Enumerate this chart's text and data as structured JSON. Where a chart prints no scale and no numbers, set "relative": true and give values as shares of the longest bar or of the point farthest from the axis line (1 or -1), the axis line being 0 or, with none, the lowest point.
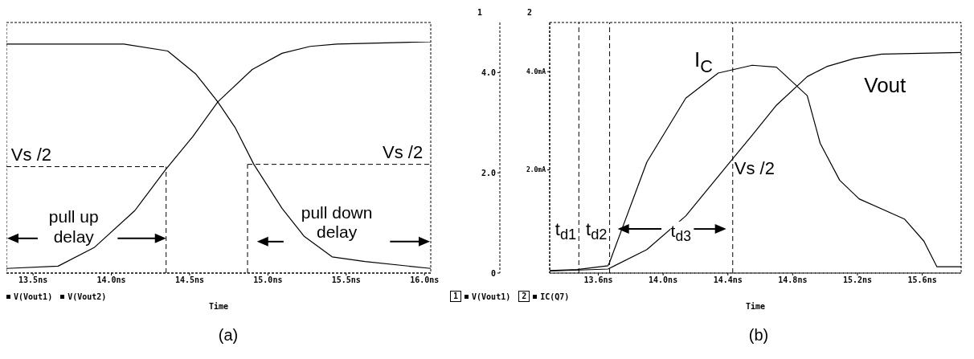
{
  "chart_data": [
    {
      "type": "line",
      "title": "(a)",
      "xlabel": "Time",
      "relative": true,
      "marker": "none",
      "legend": "bottom left",
      "xlim": [
        13.33,
        16.04
      ],
      "xticks": [
        {
          "value": 13.5,
          "label": "13.5ns"
        },
        {
          "value": 14.0,
          "label": "14.0ns"
        },
        {
          "value": 14.5,
          "label": "14.5ns"
        },
        {
          "value": 15.0,
          "label": "15.0ns"
        },
        {
          "value": 15.5,
          "label": "15.5ns"
        },
        {
          "value": 16.0,
          "label": "16.0ns"
        }
      ],
      "series": [
        {
          "name": "V(Vout1)",
          "color": "#000000",
          "x": [
            13.33,
            13.66,
            13.89,
            14.15,
            14.35,
            14.52,
            14.68,
            14.9,
            15.09,
            15.27,
            15.44,
            16.04
          ],
          "values": [
            0.02,
            0.03,
            0.11,
            0.27,
            0.45,
            0.59,
            0.74,
            0.88,
            0.95,
            0.98,
            0.99,
            1
          ]
        },
        {
          "name": "V(Vout2)",
          "color": "#000000",
          "x": [
            13.33,
            13.85,
            14.08,
            14.36,
            14.54,
            14.68,
            14.79,
            14.91,
            15.09,
            15.23,
            15.41,
            15.62,
            16.04
          ],
          "values": [
            0.99,
            0.99,
            0.99,
            0.96,
            0.86,
            0.74,
            0.63,
            0.47,
            0.28,
            0.16,
            0.07,
            0.05,
            0.02
          ]
        }
      ],
      "ref_lines": [
        {
          "axis": "x",
          "value": 14.35,
          "line_style": "dashed",
          "color": "#000000"
        },
        {
          "axis": "y",
          "value": 0.46,
          "label": "Vs /2",
          "line_style": "dashed",
          "color": "#000000"
        },
        {
          "axis": "x",
          "value": 14.87,
          "line_style": "dashed",
          "color": "#000000"
        },
        {
          "axis": "y",
          "value": 0.47,
          "label": "Vs /2",
          "line_style": "dashed",
          "color": "#000000"
        }
      ],
      "annotations": [
        "pull up delay",
        "pull down delay"
      ]
    },
    {
      "type": "line",
      "title": "(b)",
      "xlabel": "Time",
      "ylabel": "1",
      "y2label": "2",
      "marker": "none",
      "legend": "bottom left",
      "xlim": [
        13.3,
        15.84
      ],
      "xticks": [
        {
          "value": 13.6,
          "label": "13.6ns"
        },
        {
          "value": 14.0,
          "label": "14.0ns"
        },
        {
          "value": 14.4,
          "label": "14.4ns"
        },
        {
          "value": 14.8,
          "label": "14.8ns"
        },
        {
          "value": 15.2,
          "label": "15.2ns"
        },
        {
          "value": 15.6,
          "label": "15.6ns"
        }
      ],
      "ylim": [
        0,
        5.0
      ],
      "yticks": [
        0,
        {
          "value": 2,
          "label": "2.0"
        },
        {
          "value": 4,
          "label": "4.0"
        }
      ],
      "y2lim": [
        -0.1,
        5.0
      ],
      "y2ticks": [
        {
          "value": 2,
          "label": "2.0mA"
        },
        {
          "value": 4,
          "label": "4.0mA"
        }
      ],
      "series": [
        {
          "name": "V(Vout1)",
          "color": "#000000",
          "x": [
            13.3,
            13.66,
            13.9,
            14.14,
            14.43,
            14.55,
            14.7,
            14.89,
            15.01,
            15.18,
            15.35,
            15.84
          ],
          "values": [
            0.04,
            0.08,
            0.47,
            1.14,
            2.28,
            2.75,
            3.35,
            3.92,
            4.12,
            4.28,
            4.37,
            4.4
          ]
        },
        {
          "name": "IC(Q7)",
          "color": "#000000",
          "axis": "y2",
          "x": [
            13.3,
            13.47,
            13.66,
            13.67,
            13.76,
            13.9,
            14.14,
            14.34,
            14.55,
            14.7,
            14.89,
            14.97,
            15.09,
            15.21,
            15.49,
            15.61,
            15.69,
            15.84
          ],
          "values": [
            -0.05,
            -0.03,
            0.05,
            0.12,
            0.92,
            2.16,
            3.46,
            3.97,
            4.13,
            4.09,
            3.51,
            2.54,
            1.79,
            1.41,
            1.0,
            0.55,
            0.03,
            0.03
          ]
        }
      ],
      "ref_lines": [
        {
          "axis": "x",
          "value": 13.48,
          "label": "t$_{d1}$",
          "line_style": "dashed",
          "color": "#000000"
        },
        {
          "axis": "x",
          "value": 13.67,
          "label": "t$_{d2}$",
          "line_style": "dashed",
          "color": "#000000"
        },
        {
          "axis": "x",
          "value": 14.43,
          "label": "Vs /2",
          "line_style": "dashed",
          "color": "#000000"
        }
      ],
      "annotations": [
        "I$_{C}$",
        "Vout",
        "t$_{d3}$"
      ]
    }
  ]
}
